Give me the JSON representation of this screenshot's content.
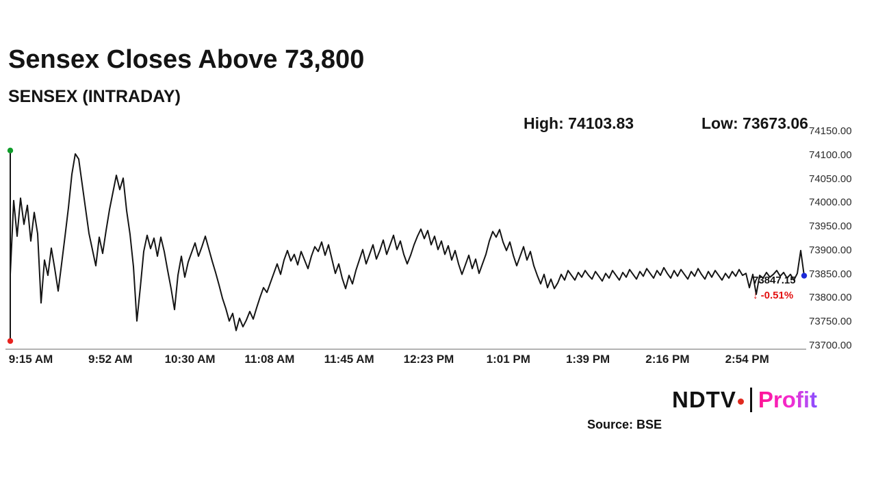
{
  "header": {
    "title": "Sensex Closes Above 73,800",
    "subtitle": "SENSEX (INTRADAY)"
  },
  "stats": {
    "high_label": "High: 74103.83",
    "low_label": "Low: 73673.06"
  },
  "annotation": {
    "last_price": "73847.15",
    "change": "↓ -0.51%",
    "change_color": "#e31212"
  },
  "footer": {
    "logo_ndtv": "NDTV",
    "logo_profit": "Profit",
    "source": "Source: BSE",
    "logo_dot_color": "#e02a1f"
  },
  "chart_data": {
    "type": "line",
    "title": "SENSEX (INTRADAY)",
    "xlabel": "",
    "ylabel": "",
    "legend": "none",
    "grid": false,
    "high": 74103.83,
    "low": 73673.06,
    "last_value": 73847.15,
    "change_pct": -0.51,
    "y_range": [
      73700,
      74150
    ],
    "line_color": "#141414",
    "axis_color": "#9a9a9a",
    "marker_colors": {
      "high": "#0f9d2a",
      "low": "#e8231f",
      "last": "#1d2bd8"
    },
    "open_marker": {
      "top": 74110,
      "bottom": 73710
    },
    "x_labels": [
      "9:15 AM",
      "9:52 AM",
      "10:30 AM",
      "11:08 AM",
      "11:45 AM",
      "12:23 PM",
      "1:01 PM",
      "1:39 PM",
      "2:16 PM",
      "2:54 PM"
    ],
    "y_ticks": [
      {
        "value": 74150,
        "label": "74150.00"
      },
      {
        "value": 74100,
        "label": "74100.00"
      },
      {
        "value": 74050,
        "label": "74050.00"
      },
      {
        "value": 74000,
        "label": "74000.00"
      },
      {
        "value": 73950,
        "label": "73950.00"
      },
      {
        "value": 73900,
        "label": "73900.00"
      },
      {
        "value": 73850,
        "label": "73850.00"
      },
      {
        "value": 73800,
        "label": "73800.00"
      },
      {
        "value": 73750,
        "label": "73750.00"
      },
      {
        "value": 73700,
        "label": "73700.00"
      }
    ],
    "values": [
      73850,
      74005,
      73930,
      74010,
      73955,
      73995,
      73920,
      73980,
      73935,
      73790,
      73880,
      73848,
      73905,
      73862,
      73815,
      73872,
      73930,
      73990,
      74060,
      74103,
      74092,
      74040,
      73988,
      73936,
      73902,
      73868,
      73928,
      73894,
      73942,
      73986,
      74022,
      74058,
      74028,
      74052,
      73984,
      73934,
      73866,
      73752,
      73822,
      73898,
      73932,
      73904,
      73926,
      73888,
      73928,
      73898,
      73858,
      73820,
      73776,
      73848,
      73888,
      73844,
      73876,
      73896,
      73916,
      73888,
      73908,
      73930,
      73904,
      73878,
      73854,
      73828,
      73800,
      73778,
      73752,
      73768,
      73732,
      73758,
      73740,
      73754,
      73772,
      73756,
      73780,
      73802,
      73822,
      73812,
      73832,
      73852,
      73872,
      73850,
      73880,
      73900,
      73878,
      73892,
      73870,
      73898,
      73880,
      73862,
      73888,
      73908,
      73898,
      73918,
      73890,
      73912,
      73882,
      73852,
      73872,
      73842,
      73820,
      73848,
      73830,
      73858,
      73880,
      73902,
      73872,
      73892,
      73912,
      73882,
      73900,
      73922,
      73892,
      73912,
      73932,
      73902,
      73920,
      73892,
      73872,
      73890,
      73912,
      73930,
      73945,
      73925,
      73942,
      73912,
      73930,
      73902,
      73920,
      73892,
      73910,
      73880,
      73900,
      73872,
      73850,
      73870,
      73890,
      73862,
      73882,
      73852,
      73872,
      73892,
      73920,
      73940,
      73928,
      73944,
      73918,
      73900,
      73918,
      73890,
      73868,
      73888,
      73908,
      73880,
      73898,
      73868,
      73848,
      73830,
      73850,
      73822,
      73840,
      73820,
      73832,
      73850,
      73838,
      73858,
      73848,
      73838,
      73854,
      73844,
      73858,
      73848,
      73840,
      73856,
      73846,
      73836,
      73852,
      73842,
      73858,
      73848,
      73838,
      73854,
      73844,
      73860,
      73850,
      73840,
      73856,
      73846,
      73862,
      73852,
      73842,
      73858,
      73848,
      73864,
      73852,
      73842,
      73858,
      73846,
      73860,
      73850,
      73840,
      73856,
      73846,
      73862,
      73850,
      73840,
      73856,
      73844,
      73858,
      73848,
      73838,
      73852,
      73842,
      73856,
      73846,
      73860,
      73848,
      73852,
      73822,
      73850,
      73808,
      73848,
      73842,
      73854,
      73844,
      73850,
      73858,
      73846,
      73854,
      73842,
      73850,
      73838,
      73852,
      73900,
      73847.15
    ]
  }
}
